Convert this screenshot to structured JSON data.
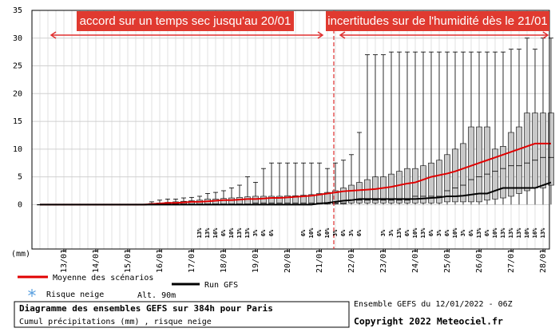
{
  "chart_data": {
    "type": "box",
    "title": "Diagramme des ensembles GEFS sur 384h pour Paris",
    "subtitle": "Cumul précipitations (mm) , risque neige",
    "source": "Ensemble GEFS du 12/01/2022 - 06Z",
    "copyright": "Copyright 2022 Meteociel.fr",
    "y_unit": "(mm)",
    "altitude": "Alt. 90m",
    "snow_legend": "Risque neige",
    "annotations": [
      {
        "text": "accord sur un temps sec jusqu'au 20/01"
      },
      {
        "text": "incertitudes sur de l'humidité dès le 21/01"
      }
    ],
    "x": [
      0.25,
      0.5,
      0.75,
      1,
      1.25,
      1.5,
      1.75,
      2,
      2.25,
      2.5,
      2.75,
      3,
      3.25,
      3.5,
      3.75,
      4,
      4.25,
      4.5,
      4.75,
      5,
      5.25,
      5.5,
      5.75,
      6,
      6.25,
      6.5,
      6.75,
      7,
      7.25,
      7.5,
      7.75,
      8,
      8.25,
      8.5,
      8.75,
      9,
      9.25,
      9.5,
      9.75,
      10,
      10.25,
      10.5,
      10.75,
      11,
      11.25,
      11.5,
      11.75,
      12,
      12.25,
      12.5,
      12.75,
      13,
      13.25,
      13.5,
      13.75,
      14,
      14.25,
      14.5,
      14.75,
      15,
      15.25,
      15.5,
      15.75,
      16,
      16.25
    ],
    "xlim": [
      0,
      16.2
    ],
    "xticks": [
      {
        "value": 1,
        "label": "13/01"
      },
      {
        "value": 2,
        "label": "14/01"
      },
      {
        "value": 3,
        "label": "15/01"
      },
      {
        "value": 4,
        "label": "16/01"
      },
      {
        "value": 5,
        "label": "17/01"
      },
      {
        "value": 6,
        "label": "18/01"
      },
      {
        "value": 7,
        "label": "19/01"
      },
      {
        "value": 8,
        "label": "20/01"
      },
      {
        "value": 9,
        "label": "21/01"
      },
      {
        "value": 10,
        "label": "22/01"
      },
      {
        "value": 11,
        "label": "23/01"
      },
      {
        "value": 12,
        "label": "24/01"
      },
      {
        "value": 13,
        "label": "25/01"
      },
      {
        "value": 14,
        "label": "26/01"
      },
      {
        "value": 15,
        "label": "27/01"
      },
      {
        "value": 16,
        "label": "28/01"
      }
    ],
    "ylim": [
      -8,
      35
    ],
    "yticks": [
      0,
      5,
      10,
      15,
      20,
      25,
      30,
      35
    ],
    "grid": true,
    "boxes": {
      "color": "#c8c8c8",
      "low": [
        0,
        0,
        0,
        0,
        0,
        0,
        0,
        0,
        0,
        0,
        0,
        0,
        0,
        0,
        0,
        0,
        0,
        0,
        0,
        0,
        0,
        0,
        0,
        0,
        0,
        0,
        0,
        0,
        0,
        0,
        0,
        0,
        0,
        0,
        0,
        0,
        0,
        0,
        0,
        0,
        0,
        0,
        0,
        0,
        0,
        0,
        0,
        0,
        0,
        0,
        0,
        0,
        0,
        0,
        0,
        0,
        0,
        0,
        0,
        0,
        0,
        0,
        0,
        0,
        0
      ],
      "q1": [
        0,
        0,
        0,
        0,
        0,
        0,
        0,
        0,
        0,
        0,
        0,
        0,
        0,
        0,
        0.1,
        0.1,
        0.1,
        0.1,
        0.1,
        0.1,
        0.1,
        0.1,
        0.1,
        0.1,
        0.1,
        0.1,
        0.1,
        0.1,
        0.1,
        0.1,
        0.1,
        0.1,
        0.1,
        0.1,
        0.1,
        0.1,
        0.1,
        0.1,
        0.1,
        0.3,
        0.3,
        0.3,
        0.3,
        0.3,
        0.3,
        0.3,
        0.3,
        0.3,
        0.3,
        0.3,
        0.3,
        0.5,
        0.5,
        0.5,
        0.5,
        0.5,
        0.8,
        1,
        1.2,
        1.5,
        2,
        2.5,
        3,
        3,
        3.5
      ],
      "median": [
        0,
        0,
        0,
        0,
        0,
        0,
        0,
        0,
        0,
        0,
        0,
        0,
        0,
        0,
        0.1,
        0.1,
        0.1,
        0.1,
        0.1,
        0.1,
        0.1,
        0.1,
        0.1,
        0.1,
        0.1,
        0.1,
        0.1,
        0.3,
        0.3,
        0.3,
        0.3,
        0.3,
        0.3,
        0.3,
        0.3,
        0.3,
        0.3,
        0.3,
        0.3,
        0.8,
        0.8,
        0.8,
        0.8,
        0.8,
        0.8,
        0.8,
        0.8,
        1.5,
        1.5,
        1.5,
        1.5,
        2.5,
        3,
        3.5,
        4.5,
        5,
        5.5,
        6,
        6.5,
        7,
        7,
        7.5,
        8,
        8.5,
        8.5
      ],
      "q3": [
        0,
        0,
        0,
        0,
        0,
        0,
        0,
        0,
        0,
        0,
        0,
        0,
        0,
        0,
        0.2,
        0.3,
        0.4,
        0.5,
        0.6,
        0.7,
        0.8,
        1,
        1,
        1.1,
        1.2,
        1.3,
        1.4,
        1.5,
        1.5,
        1.5,
        1.5,
        1.6,
        1.6,
        1.7,
        1.8,
        2,
        2.2,
        2.5,
        3,
        3.5,
        4,
        4.5,
        5,
        5,
        5.5,
        6,
        6.5,
        6.5,
        7,
        7.5,
        8,
        9,
        10,
        11,
        14,
        14,
        14,
        10,
        10.5,
        13,
        14,
        16.5,
        16.5,
        16.5,
        16.5
      ],
      "high": [
        0,
        0,
        0,
        0,
        0,
        0,
        0,
        0,
        0,
        0,
        0,
        0,
        0,
        0,
        0.5,
        0.8,
        1,
        1,
        1.2,
        1.3,
        1.5,
        2,
        2.2,
        2.5,
        3,
        3.5,
        5,
        4,
        6.5,
        7.5,
        7.5,
        7.5,
        7.5,
        7.5,
        7.5,
        7.5,
        6.5,
        7.5,
        8,
        9,
        13,
        27,
        27,
        27,
        27.5,
        27.5,
        27.5,
        27.5,
        27.5,
        27.5,
        27.5,
        27.5,
        27.5,
        27.5,
        27.5,
        27.5,
        27.5,
        27.5,
        27.5,
        28,
        28,
        30,
        28,
        30,
        30
      ]
    },
    "series": [
      {
        "name": "Moyenne des scénarios",
        "color": "#e00000",
        "values": [
          0,
          0,
          0,
          0,
          0,
          0,
          0,
          0,
          0,
          0,
          0,
          0,
          0,
          0,
          0.1,
          0.2,
          0.3,
          0.3,
          0.4,
          0.5,
          0.5,
          0.6,
          0.7,
          0.8,
          0.8,
          0.9,
          1,
          1,
          1.1,
          1.2,
          1.2,
          1.3,
          1.4,
          1.5,
          1.6,
          1.8,
          2,
          2.2,
          2.4,
          2.5,
          2.6,
          2.7,
          2.8,
          3,
          3.2,
          3.5,
          3.8,
          4,
          4.5,
          5,
          5.3,
          5.6,
          6,
          6.5,
          7,
          7.5,
          8,
          8.5,
          9,
          9.5,
          10,
          10.5,
          11,
          11,
          11
        ]
      },
      {
        "name": "Run GFS",
        "color": "#000000",
        "values": [
          0,
          0,
          0,
          0,
          0,
          0,
          0,
          0,
          0,
          0,
          0,
          0,
          0,
          0,
          0,
          0,
          0,
          0,
          0,
          0,
          0,
          0,
          0,
          0,
          0,
          0,
          0,
          0,
          0,
          0,
          0,
          0,
          0,
          0,
          0,
          0.2,
          0.3,
          0.5,
          0.7,
          0.8,
          1,
          1,
          1,
          1,
          1,
          1,
          1,
          1,
          1.1,
          1.2,
          1.3,
          1.5,
          1.5,
          1.6,
          1.8,
          2,
          2,
          2.5,
          3,
          3,
          3,
          3,
          3,
          3.5,
          4
        ]
      }
    ],
    "snow_risk": {
      "color": "#3a7bd5",
      "x": [
        5.25,
        5.5,
        5.75,
        6,
        6.25,
        6.5,
        6.75,
        7,
        7.25,
        7.5,
        8.5,
        8.75,
        9,
        9.25,
        9.5,
        9.75,
        10,
        10.25,
        11,
        11.25,
        11.5,
        11.75,
        12,
        12.25,
        12.5,
        12.75,
        13,
        13.25,
        13.5,
        13.75,
        14,
        14.25,
        14.5,
        14.75,
        15,
        15.25,
        15.5,
        15.75,
        16
      ],
      "values": [
        13,
        13,
        16,
        6,
        10,
        13,
        13,
        3,
        6,
        6,
        6,
        10,
        6,
        10,
        3,
        6,
        3,
        6,
        3,
        3,
        13,
        6,
        10,
        13,
        6,
        3,
        6,
        10,
        3,
        6,
        13,
        6,
        10,
        13,
        13,
        13,
        10,
        16,
        13
      ],
      "value_labels": [
        "13%",
        "13%",
        "16%",
        "6%",
        "10%",
        "13%",
        "13%",
        "3%",
        "6%",
        "6%",
        "6%",
        "10%",
        "6%",
        "10%",
        "3%",
        "6%",
        "3%",
        "6%",
        "3%",
        "3%",
        "13%",
        "6%",
        "10%",
        "13%",
        "6%",
        "3%",
        "6%",
        "10%",
        "3%",
        "6%",
        "13%",
        "6%",
        "10%",
        "13%",
        "13%",
        "13%",
        "10%",
        "16%",
        "13%"
      ]
    }
  }
}
